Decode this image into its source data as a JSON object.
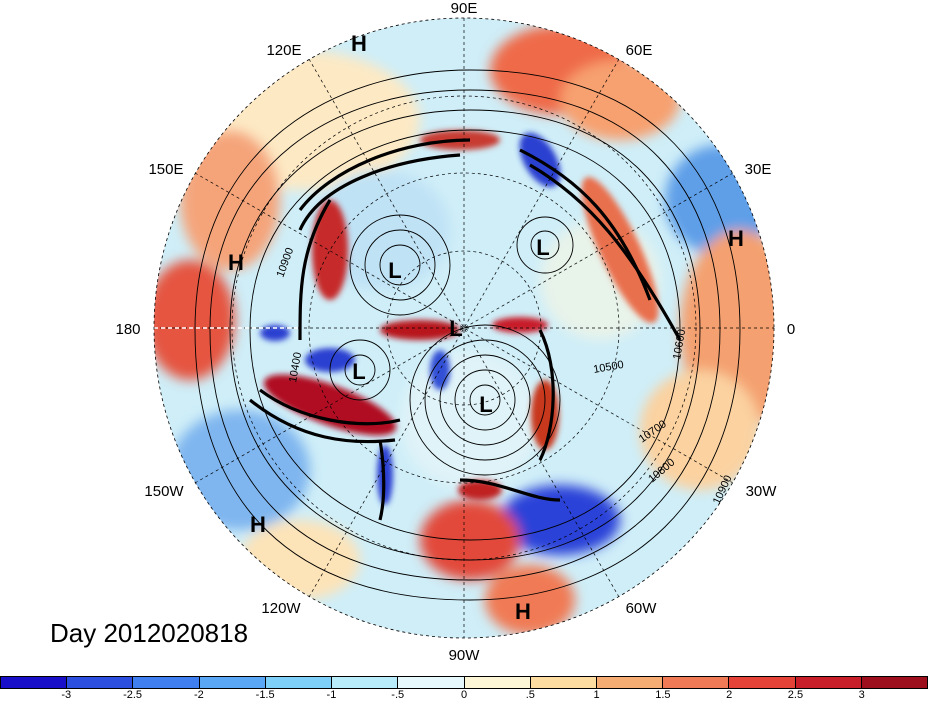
{
  "map": {
    "longitude_labels": [
      "90E",
      "60E",
      "30E",
      "0",
      "30W",
      "60W",
      "90W",
      "120W",
      "150W",
      "180",
      "150E",
      "120E"
    ],
    "systems": [
      "H",
      "H",
      "L",
      "L",
      "L",
      "L",
      "L",
      "H",
      "H",
      "H"
    ],
    "contour_labels": [
      "10900",
      "10500",
      "10700",
      "10800",
      "10900",
      "10400",
      "10600"
    ]
  },
  "day_label": "Day 2012020818",
  "colorbar": {
    "ticks": [
      "-3",
      "-2.5",
      "-2",
      "-1.5",
      "-1",
      "-.5",
      "0",
      ".5",
      "1",
      "1.5",
      "2",
      "2.5",
      "3"
    ],
    "colors": [
      "#1a0fc8",
      "#2c4fe0",
      "#3f7ff0",
      "#5aa8f5",
      "#7fd0f8",
      "#b8ecfa",
      "#e6f8fb",
      "#fdf6d6",
      "#fcdca0",
      "#f6ad74",
      "#ef7a55",
      "#e54337",
      "#c81e2a",
      "#9d0f1c"
    ]
  }
}
